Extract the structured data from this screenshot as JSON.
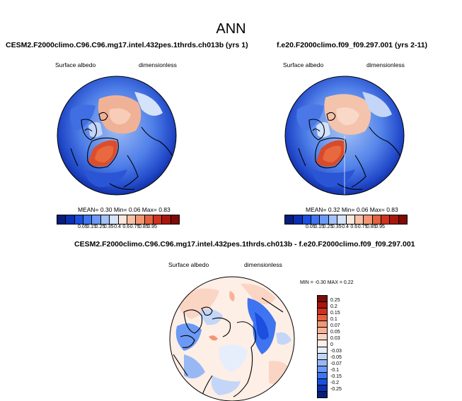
{
  "title": "ANN",
  "panels": [
    {
      "case_title": "CESM2.F2000climo.C96.C96.mg17.intel.432pes.1thrds.ch013b (yrs 1)",
      "field": "Surface albedo",
      "units": "dimensionless",
      "stats": {
        "mean_label": "MEAN=",
        "mean": "0.30",
        "min_label": "Min=",
        "min": "0.06",
        "max_label": "Max=",
        "max": "0.83"
      }
    },
    {
      "case_title": "f.e20.F2000climo.f09_f09.297.001 (yrs 2-11)",
      "field": "Surface albedo",
      "units": "dimensionless",
      "stats": {
        "mean_label": "MEAN=",
        "mean": "0.32",
        "min_label": "Min=",
        "min": "0.06",
        "max_label": "Max=",
        "max": "0.83"
      }
    }
  ],
  "diff_panel": {
    "case_title": "CESM2.F2000climo.C96.C96.mg17.intel.432pes.1thrds.ch013b - f.e20.F2000climo.f09_f09.297.001",
    "field": "Surface albedo",
    "units": "dimensionless",
    "stats_text": "MIN =  -0.30 MAX =   0.22"
  },
  "colorbar_main": {
    "labels": [
      "0.05",
      "0.15",
      "0.25",
      "0.35",
      "0.4",
      "0.6",
      "0.75",
      "0.85",
      "0.95"
    ],
    "colors": [
      "#081d7a",
      "#0a2fb0",
      "#1a4fe0",
      "#3f74f0",
      "#6b99f5",
      "#a3c1f7",
      "#d4e2fa",
      "#fbe6dc",
      "#f7c1a8",
      "#f19775",
      "#e3623f",
      "#cf3320",
      "#a8170f",
      "#7d0b06"
    ]
  },
  "colorbar_diff": {
    "labels": [
      "0.25",
      "0.2",
      "0.15",
      "0.1",
      "0.07",
      "0.05",
      "0.03",
      "0",
      "-0.03",
      "-0.05",
      "-0.07",
      "-0.1",
      "-0.15",
      "-0.2",
      "-0.25"
    ],
    "colors": [
      "#7d0b06",
      "#a8170f",
      "#cf3320",
      "#e3623f",
      "#f19775",
      "#f7b295",
      "#fbd5c4",
      "#fdeee6",
      "#e6eefc",
      "#c3d6f8",
      "#98b8f4",
      "#6b99f5",
      "#3f74f0",
      "#1a4fe0",
      "#0a2fb0",
      "#081d7a"
    ]
  }
}
